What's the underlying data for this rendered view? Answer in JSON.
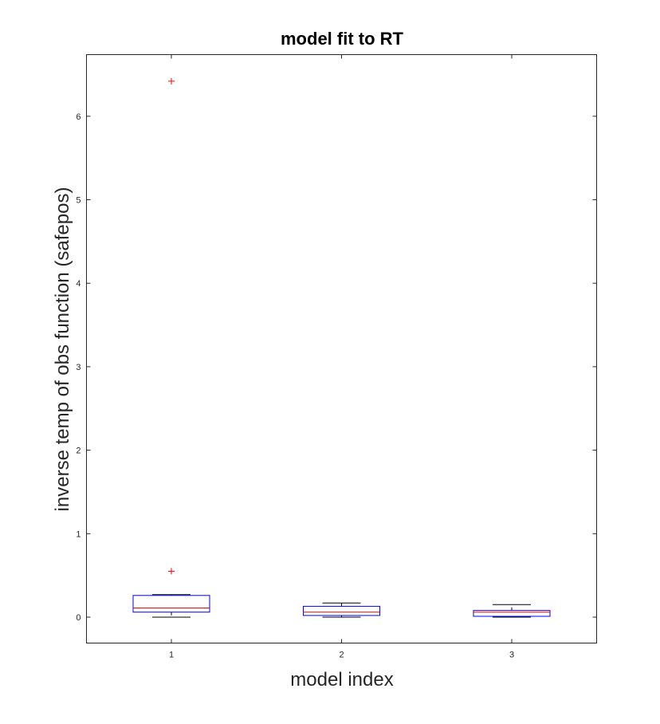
{
  "chart_data": {
    "type": "boxplot",
    "title": "model fit to RT",
    "xlabel": "model index",
    "ylabel": "inverse temp of obs function (safepos)",
    "categories": [
      "1",
      "2",
      "3"
    ],
    "ylim": [
      -0.3,
      6.8
    ],
    "yticks": [
      0,
      1,
      2,
      3,
      4,
      5,
      6
    ],
    "grid": false,
    "legend": "none",
    "boxes": [
      {
        "category": "1",
        "whisker_low": 0.0,
        "q1": 0.06,
        "median": 0.11,
        "q3": 0.26,
        "whisker_high": 0.27,
        "outliers": [
          0.55,
          6.42
        ]
      },
      {
        "category": "2",
        "whisker_low": 0.0,
        "q1": 0.02,
        "median": 0.06,
        "q3": 0.13,
        "whisker_high": 0.17,
        "outliers": []
      },
      {
        "category": "3",
        "whisker_low": 0.0,
        "q1": 0.01,
        "median": 0.06,
        "q3": 0.08,
        "whisker_high": 0.15,
        "outliers": []
      }
    ],
    "colors": {
      "box": "#0000ff",
      "median": "#ff0000",
      "whisker": "#000000",
      "outlier": "#ff0000",
      "axis": "#262626"
    }
  }
}
